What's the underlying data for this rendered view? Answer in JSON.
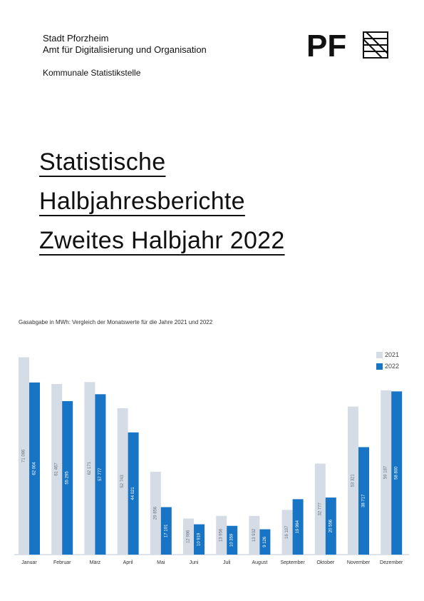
{
  "header": {
    "org_lines": [
      "Stadt Pforzheim",
      "Amt für Digitalisierung und Organisation"
    ],
    "unit": "Kommunale Statistikstelle",
    "logo_text": "PF"
  },
  "title_lines": [
    "Statistische",
    "Halbjahresberichte",
    "Zweites Halbjahr 2022"
  ],
  "chart_caption": "Gasabgabe in MWh: Vergleich der Monatswerte für die Jahre 2021 und 2022",
  "colors": {
    "s2021": "#d5dce6",
    "s2022": "#1874c4",
    "axis": "#bfc6d0"
  },
  "chart_data": {
    "type": "bar",
    "title": "Gasabgabe in MWh: Vergleich der Monatswerte für die Jahre 2021 und 2022",
    "categories": [
      "Januar",
      "Februar",
      "März",
      "April",
      "Mai",
      "Juni",
      "Juli",
      "August",
      "September",
      "Oktober",
      "November",
      "Dezember"
    ],
    "series": [
      {
        "name": "2021",
        "values": [
          71086,
          61467,
          62171,
          52743,
          29856,
          12986,
          13956,
          13932,
          16107,
          32777,
          53321,
          59187
        ]
      },
      {
        "name": "2022",
        "values": [
          62004,
          55295,
          57777,
          44021,
          17101,
          10919,
          10359,
          9126,
          19964,
          20556,
          38717,
          58800
        ]
      }
    ],
    "value_labels": {
      "2021": [
        "71 086",
        "61 467",
        "62 171",
        "52 743",
        "29 856",
        "12 986",
        "13 956",
        "13 932",
        "16 107",
        "32 777",
        "53 321",
        "59 187"
      ],
      "2022": [
        "62 004",
        "55 295",
        "57 777",
        "44 021",
        "17 101",
        "10 919",
        "10 359",
        "9 126",
        "19 964",
        "20 556",
        "38 717",
        "58 800"
      ]
    },
    "ylim": [
      0,
      72000
    ],
    "grid": false,
    "legend": "top-right"
  }
}
